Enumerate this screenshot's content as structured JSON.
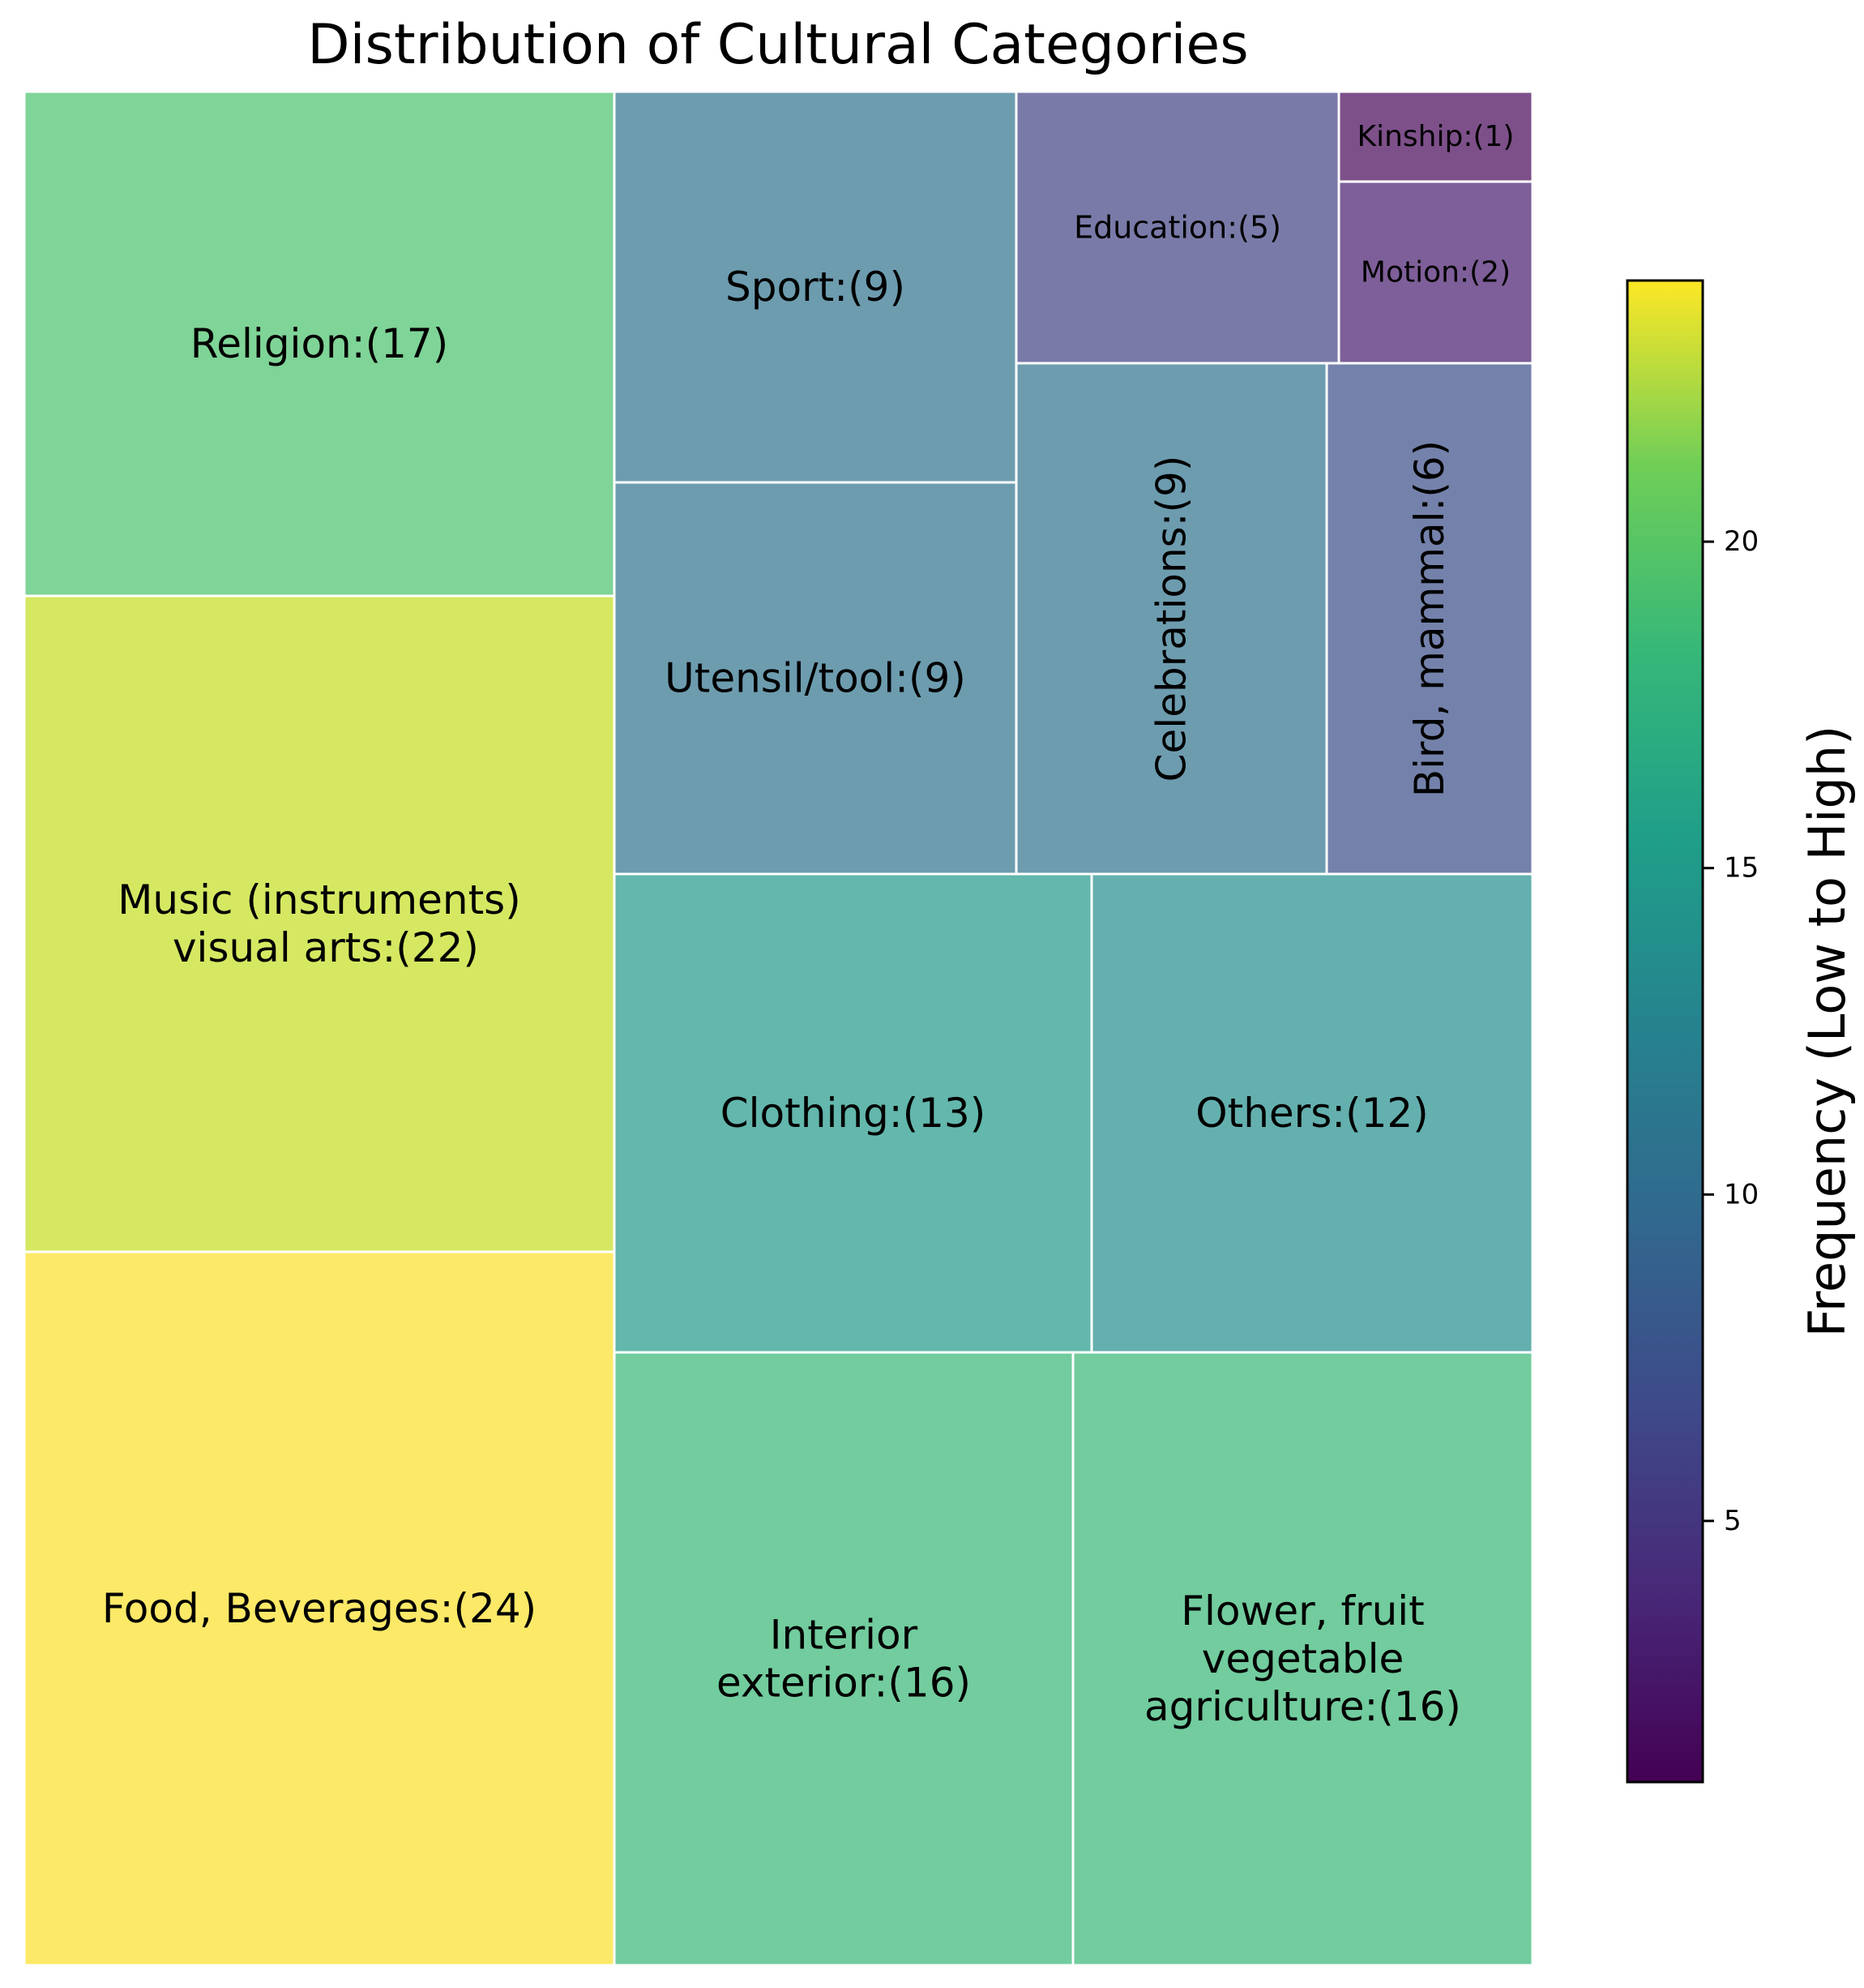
{
  "chart_data": {
    "type": "treemap",
    "title": "Distribution of Cultural Categories",
    "colorbar": {
      "label": "Frequency (Low to High)",
      "colormap": "viridis",
      "range": [
        1,
        24
      ],
      "ticks": [
        5,
        10,
        15,
        20
      ]
    },
    "items": [
      {
        "name": "Religion",
        "label": "Religion:(17)",
        "value": 17,
        "color": "#7fd497"
      },
      {
        "name": "Music",
        "label": "Music (instruments)\n visual arts:(22)",
        "value": 22,
        "color": "#d6e862"
      },
      {
        "name": "Food",
        "label": "Food, Beverages:(24)",
        "value": 24,
        "color": "#fce968"
      },
      {
        "name": "Sport",
        "label": "Sport:(9)",
        "value": 9,
        "color": "#6d9caf"
      },
      {
        "name": "Utensil",
        "label": "Utensil/tool:(9)",
        "value": 9,
        "color": "#6d9caf"
      },
      {
        "name": "Education",
        "label": "Education:(5)",
        "value": 5,
        "color": "#7a7aa9"
      },
      {
        "name": "Kinship",
        "label": "Kinship:(1)",
        "value": 1,
        "color": "#7d508a"
      },
      {
        "name": "Motion",
        "label": "Motion:(2)",
        "value": 2,
        "color": "#7e5f99"
      },
      {
        "name": "Celebrations",
        "label": "Celebrations:(9)",
        "value": 9,
        "color": "#6d9caf"
      },
      {
        "name": "Bird",
        "label": "Bird, mammal:(6)",
        "value": 6,
        "color": "#7482ab"
      },
      {
        "name": "Clothing",
        "label": "Clothing:(13)",
        "value": 13,
        "color": "#63b7ac"
      },
      {
        "name": "Others",
        "label": "Others:(12)",
        "value": 12,
        "color": "#64b0af"
      },
      {
        "name": "Interior",
        "label": "Interior\nexterior:(16)",
        "value": 16,
        "color": "#72cc9e"
      },
      {
        "name": "Flower",
        "label": "Flower, fruit\nvegetable\nagriculture:(16)",
        "value": 16,
        "color": "#72cc9e"
      }
    ]
  }
}
